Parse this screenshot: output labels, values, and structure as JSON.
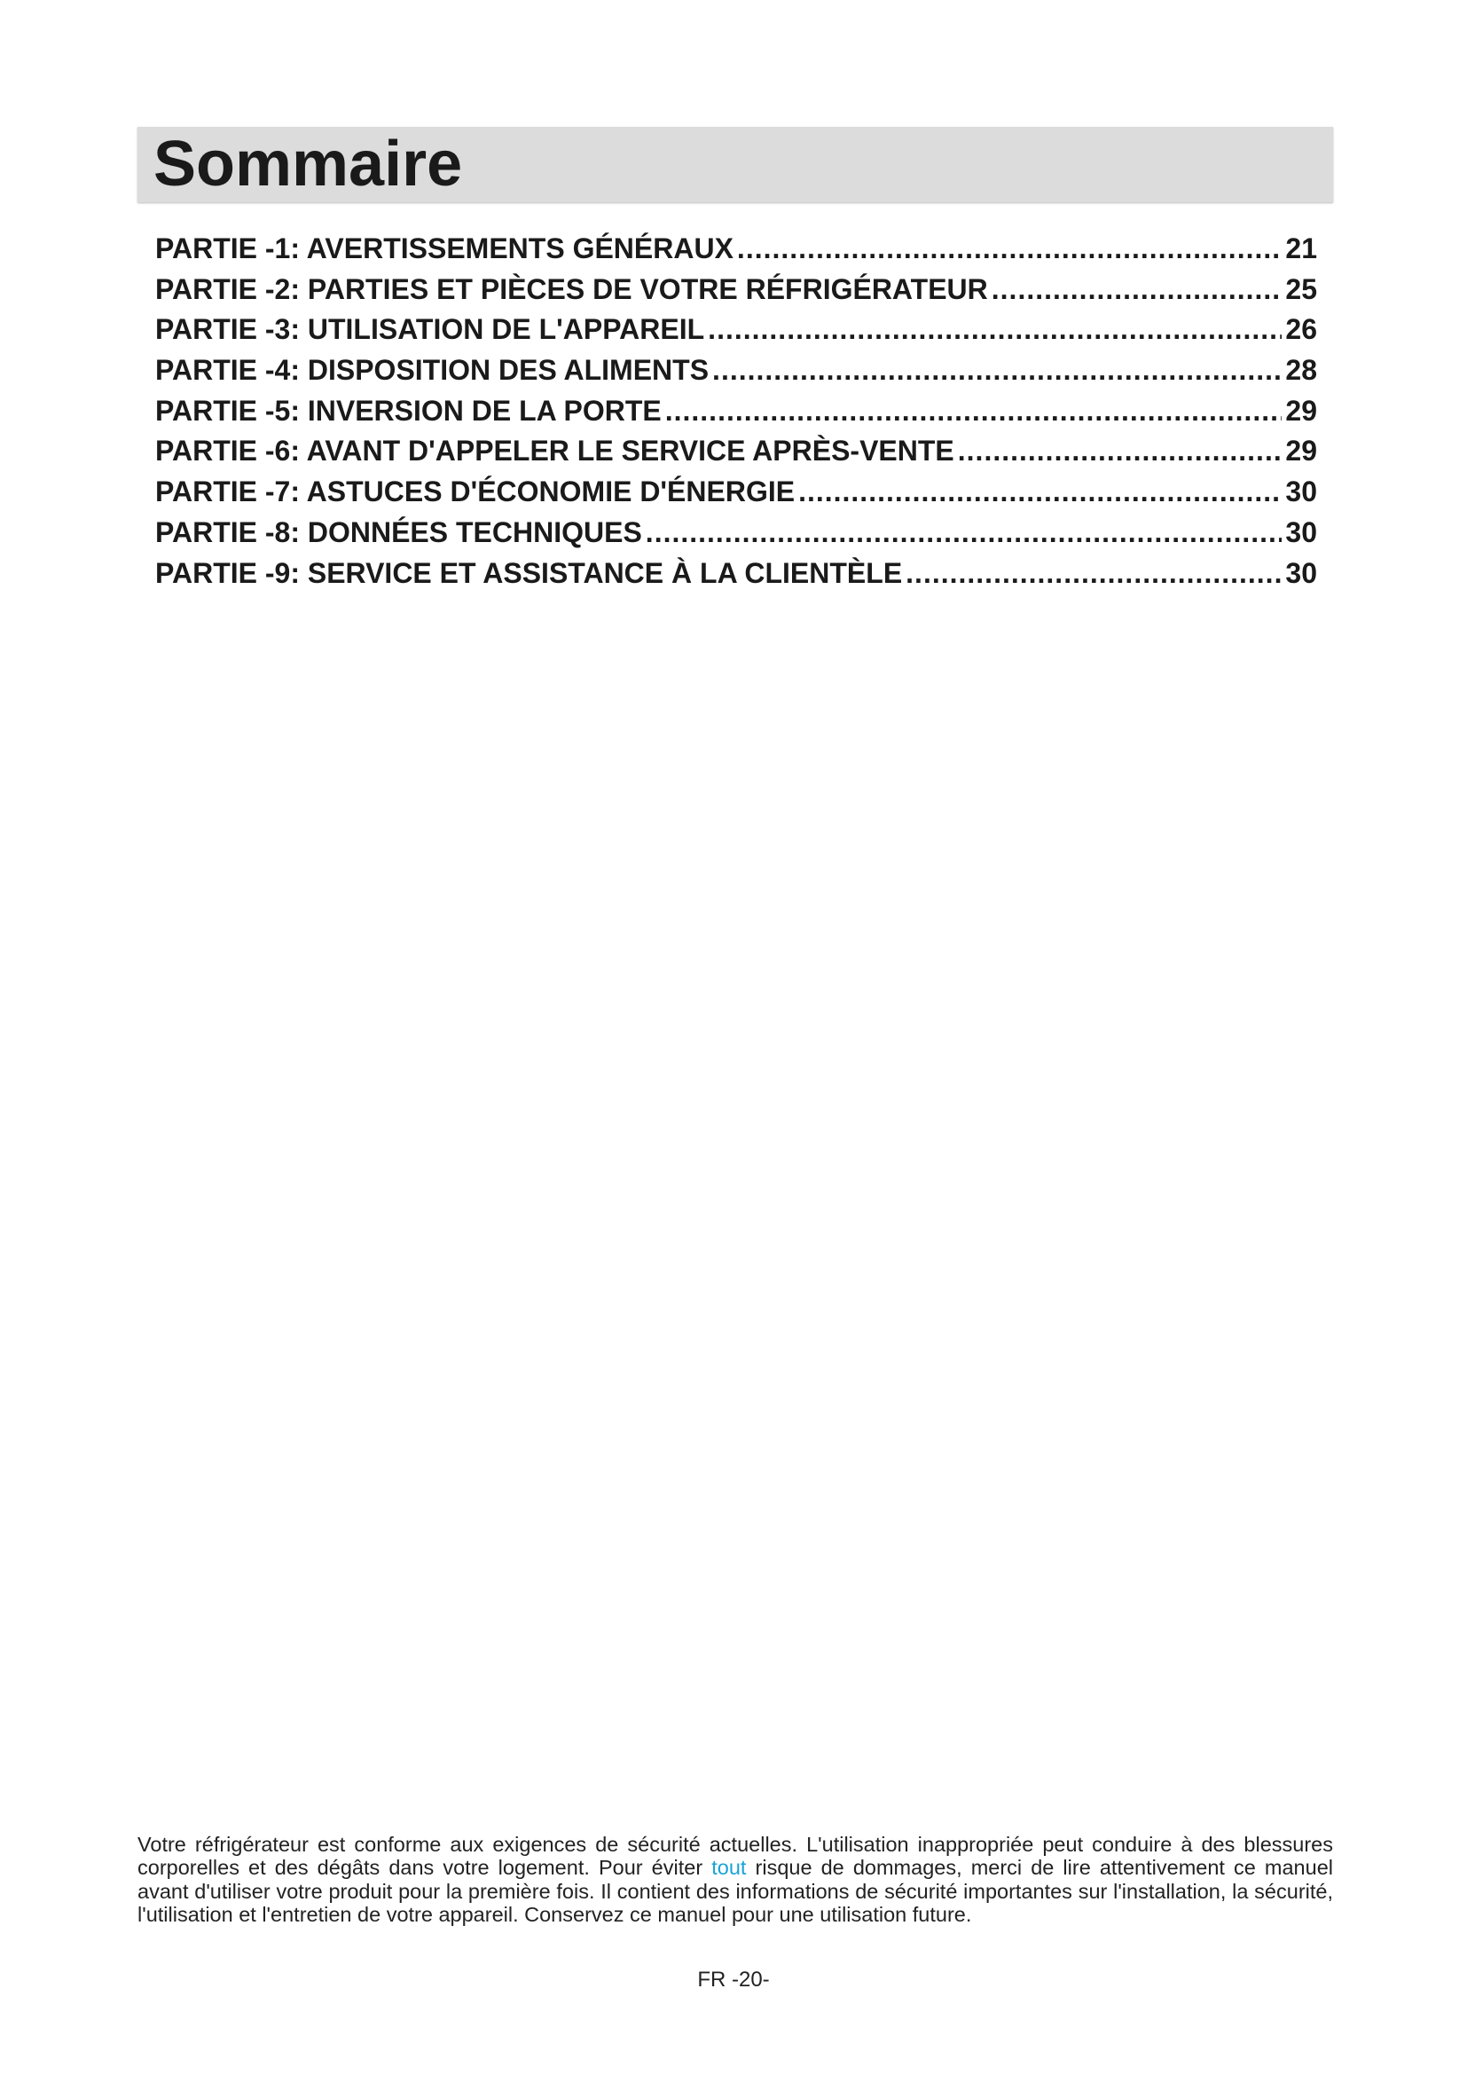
{
  "header": {
    "title": "Sommaire"
  },
  "toc": [
    {
      "label": "PARTIE -1: AVERTISSEMENTS GÉNÉRAUX",
      "page": "21"
    },
    {
      "label": "PARTIE -2: PARTIES ET PIÈCES DE VOTRE RÉFRIGÉRATEUR",
      "page": "25"
    },
    {
      "label": "PARTIE -3: UTILISATION DE L'APPAREIL",
      "page": "26"
    },
    {
      "label": "PARTIE -4: DISPOSITION DES ALIMENTS",
      "page": "28"
    },
    {
      "label": "PARTIE -5: INVERSION DE LA PORTE",
      "page": "29"
    },
    {
      "label": "PARTIE -6: AVANT D'APPELER LE SERVICE APRÈS-VENTE",
      "page": "29"
    },
    {
      "label": "PARTIE -7: ASTUCES D'ÉCONOMIE D'ÉNERGIE",
      "page": "30"
    },
    {
      "label": "PARTIE -8: DONNÉES TECHNIQUES",
      "page": "30"
    },
    {
      "label": "PARTIE -9: SERVICE ET ASSISTANCE À LA CLIENTÈLE",
      "page": "30"
    }
  ],
  "intro": {
    "before": "Votre réfrigérateur est conforme aux exigences de sécurité actuelles. L'utilisation inappropriée peut conduire à des blessures corporelles et des dégâts dans votre logement. Pour éviter ",
    "link": "tout",
    "after": " risque de dommages, merci de lire attentivement ce manuel avant d'utiliser votre produit pour la première fois. Il contient des informations de sécurité importantes sur l'installation, la sécurité, l'utilisation et l'entretien de votre appareil. Conservez ce manuel pour une utilisation future.",
    "link_color": "#1aa3d9"
  },
  "footer": {
    "page_number": "FR -20-"
  }
}
